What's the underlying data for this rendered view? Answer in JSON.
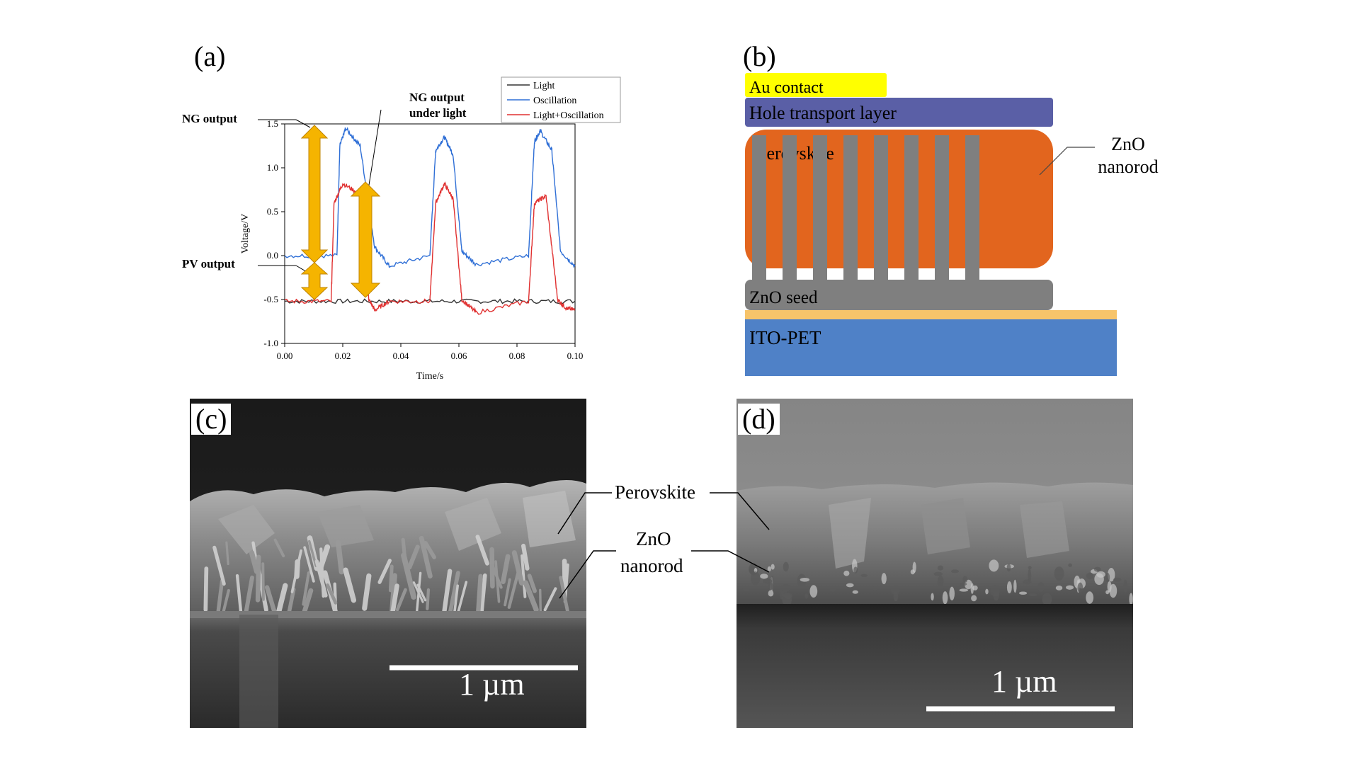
{
  "panels": {
    "a": {
      "label": "(a)"
    },
    "b": {
      "label": "(b)"
    },
    "c": {
      "label": "(c)"
    },
    "d": {
      "label": "(d)"
    }
  },
  "chart_data": {
    "type": "line",
    "xlabel": "Time/s",
    "ylabel": "Voltage/V",
    "xlim": [
      0.0,
      0.1
    ],
    "ylim": [
      -1.0,
      1.5
    ],
    "xticks": [
      "0.00",
      "0.02",
      "0.04",
      "0.06",
      "0.08",
      "0.10"
    ],
    "yticks": [
      "-1.0",
      "-0.5",
      "0.0",
      "0.5",
      "1.0",
      "1.5"
    ],
    "legend": {
      "placement": "top-right"
    },
    "series": [
      {
        "name": "Light",
        "color": "#333333",
        "x": [
          0.0,
          0.02,
          0.04,
          0.06,
          0.08,
          0.1
        ],
        "y": [
          -0.52,
          -0.52,
          -0.52,
          -0.52,
          -0.52,
          -0.52
        ]
      },
      {
        "name": "Oscillation",
        "color": "#2f6fd6",
        "x": [
          0.0,
          0.018,
          0.019,
          0.021,
          0.026,
          0.031,
          0.036,
          0.05,
          0.052,
          0.055,
          0.058,
          0.061,
          0.066,
          0.084,
          0.086,
          0.088,
          0.092,
          0.095,
          0.1
        ],
        "y": [
          0.0,
          0.0,
          1.25,
          1.45,
          1.25,
          0.1,
          -0.12,
          0.0,
          1.2,
          1.35,
          1.15,
          0.05,
          -0.1,
          0.0,
          1.3,
          1.42,
          1.2,
          0.05,
          -0.12
        ]
      },
      {
        "name": "Light+Oscillation",
        "color": "#e03030",
        "x": [
          0.0,
          0.016,
          0.017,
          0.02,
          0.026,
          0.029,
          0.031,
          0.036,
          0.05,
          0.052,
          0.055,
          0.058,
          0.061,
          0.066,
          0.084,
          0.086,
          0.09,
          0.094,
          0.097,
          0.1
        ],
        "y": [
          -0.52,
          -0.52,
          0.6,
          0.82,
          0.7,
          -0.5,
          -0.62,
          -0.52,
          -0.52,
          0.6,
          0.82,
          0.65,
          -0.5,
          -0.65,
          -0.52,
          0.6,
          0.68,
          -0.5,
          -0.6,
          -0.62
        ]
      }
    ],
    "annotations": {
      "ng_output": "NG output",
      "pv_output": "PV output",
      "ng_under_light_1": "NG output",
      "ng_under_light_2": "under light"
    }
  },
  "device": {
    "au": "Au contact",
    "htl": "Hole transport layer",
    "perovskite": "Perovskite",
    "zno_seed": "ZnO seed",
    "ito": "ITO-PET",
    "nanorod_1": "ZnO",
    "nanorod_2": "nanorod",
    "colors": {
      "au": "#ffff00",
      "htl": "#5a5fa6",
      "perovskite": "#e2651e",
      "rod": "#7f7f7f",
      "seed": "#7f7f7f",
      "ito": "#4f81c7",
      "ito_top": "#f7c46a"
    }
  },
  "sem_c": {
    "scale": "1 µm",
    "perovskite": "Perovskite",
    "nanorod_1": "ZnO",
    "nanorod_2": "nanorod"
  },
  "sem_d": {
    "scale": "1 µm"
  }
}
